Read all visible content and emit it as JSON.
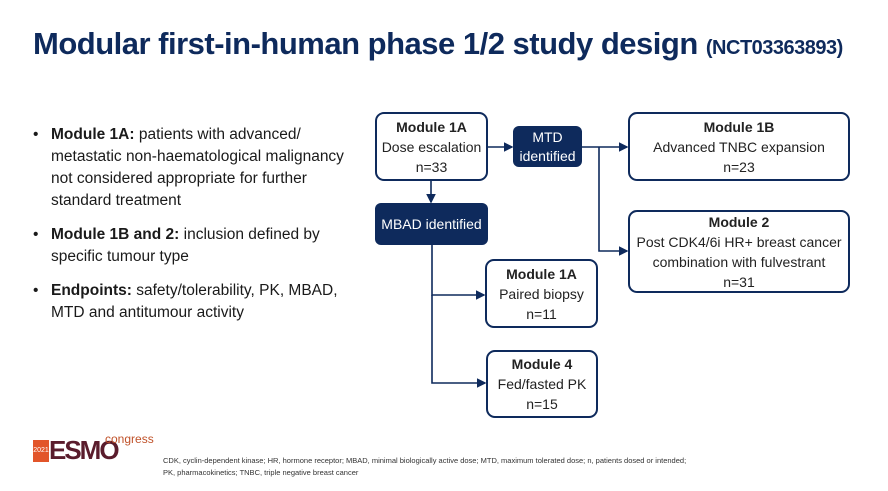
{
  "title": {
    "main": "Modular first-in-human phase 1/2 study design",
    "trial_id": "(NCT03363893)"
  },
  "bullets": [
    {
      "label": "Module 1A:",
      "text": " patients with advanced/ metastatic non-haematological malignancy not considered appropriate for further standard treatment"
    },
    {
      "label": "Module 1B and 2:",
      "text": " inclusion defined by specific tumour type"
    },
    {
      "label": "Endpoints:",
      "text": " safety/tolerability, PK, MBAD, MTD and antitumour activity"
    }
  ],
  "diagram": {
    "module_1a_dose": {
      "title": "Module 1A",
      "desc": "Dose escalation",
      "n": "n=33"
    },
    "mtd": {
      "line1": "MTD",
      "line2": "identified"
    },
    "mbad": {
      "label": "MBAD identified"
    },
    "module_1b": {
      "title": "Module 1B",
      "desc": "Advanced TNBC expansion",
      "n": "n=23"
    },
    "module_2": {
      "title": "Module 2",
      "desc1": "Post CDK4/6i HR+ breast cancer",
      "desc2": "combination with fulvestrant",
      "n": "n=31"
    },
    "module_1a_biopsy": {
      "title": "Module 1A",
      "desc": "Paired biopsy",
      "n": "n=11"
    },
    "module_4": {
      "title": "Module 4",
      "desc": "Fed/fasted PK",
      "n": "n=15"
    }
  },
  "logo": {
    "year": "2021",
    "name": "ESMO",
    "suffix": "congress"
  },
  "footnote": {
    "line1": "CDK, cyclin-dependent kinase; HR, hormone receptor; MBAD, minimal biologically active dose; MTD, maximum tolerated dose; n, patients dosed or intended;",
    "line2": "PK, pharmacokinetics; TNBC, triple negative breast cancer"
  },
  "colors": {
    "navy": "#0e2a5c"
  }
}
